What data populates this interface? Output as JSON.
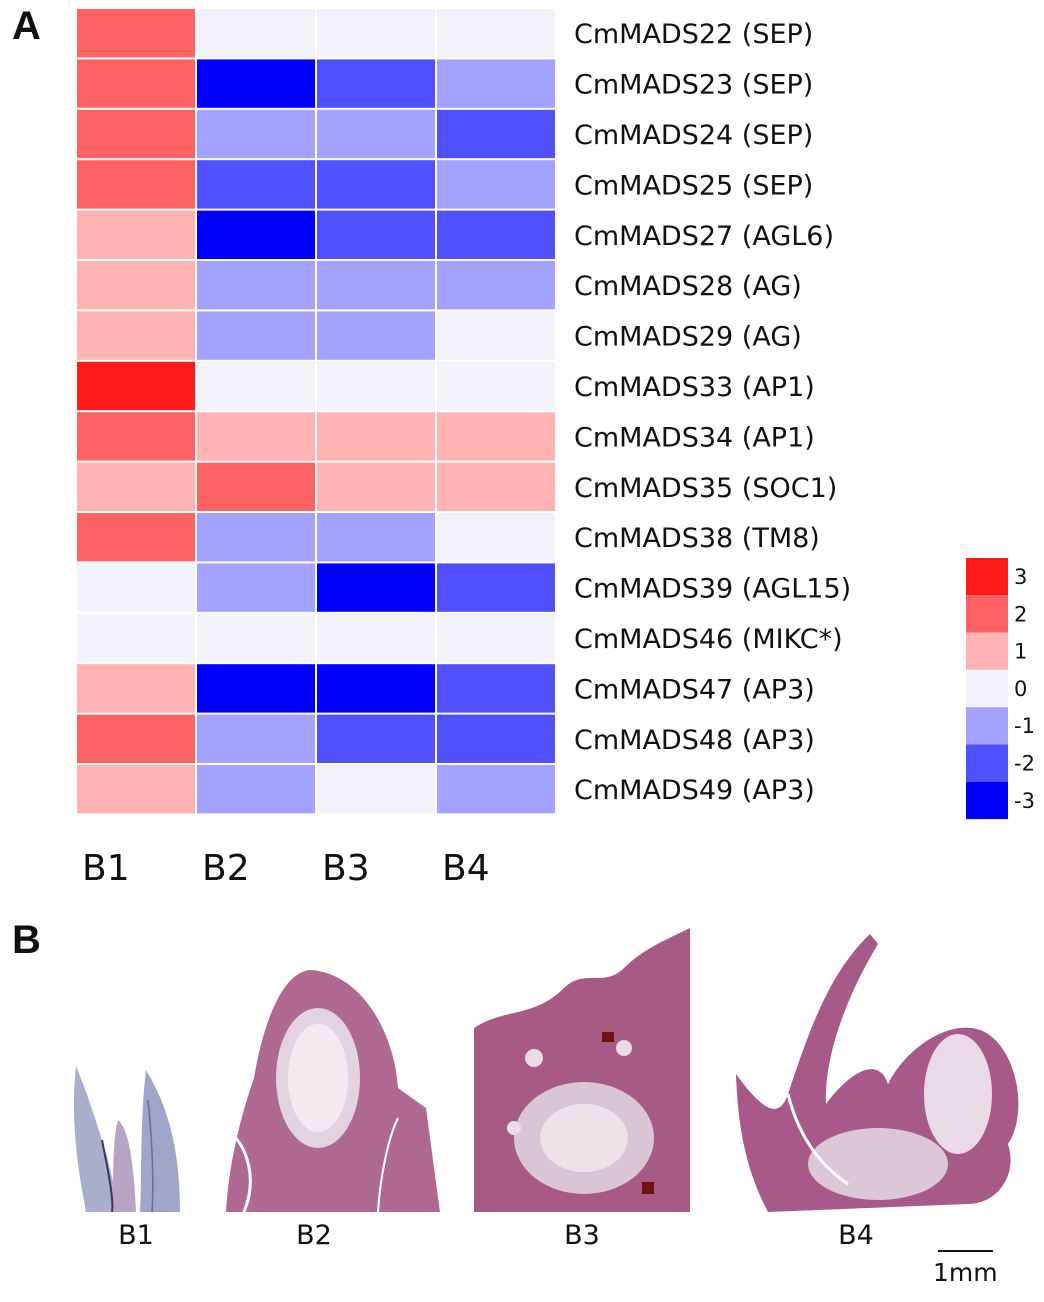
{
  "panel_a_letter": "A",
  "panel_b_letter": "B",
  "chart_data": {
    "type": "heatmap",
    "columns": [
      "B1",
      "B2",
      "B3",
      "B4"
    ],
    "rows": [
      "CmMADS22 (SEP)",
      "CmMADS23 (SEP)",
      "CmMADS24 (SEP)",
      "CmMADS25 (SEP)",
      "CmMADS27 (AGL6)",
      "CmMADS28 (AG)",
      "CmMADS29 (AG)",
      "CmMADS33 (AP1)",
      "CmMADS34 (AP1)",
      "CmMADS35 (SOC1)",
      "CmMADS38 (TM8)",
      "CmMADS39 (AGL15)",
      "CmMADS46 (MIKC*)",
      "CmMADS47 (AP3)",
      "CmMADS48 (AP3)",
      "CmMADS49 (AP3)"
    ],
    "values": [
      [
        2,
        0,
        0,
        0
      ],
      [
        2,
        -3,
        -2,
        -1
      ],
      [
        2,
        -1,
        -1,
        -2
      ],
      [
        2,
        -2,
        -2,
        -1
      ],
      [
        1,
        -3,
        -2,
        -2
      ],
      [
        1,
        -1,
        -1,
        -1
      ],
      [
        1,
        -1,
        -1,
        0
      ],
      [
        3,
        0,
        0,
        0
      ],
      [
        2,
        1,
        1,
        1
      ],
      [
        1,
        2,
        1,
        1
      ],
      [
        2,
        -1,
        -1,
        0
      ],
      [
        0,
        -1,
        -3,
        -2
      ],
      [
        0,
        0,
        0,
        0
      ],
      [
        1,
        -3,
        -3,
        -2
      ],
      [
        2,
        -1,
        -2,
        -2
      ],
      [
        1,
        -1,
        0,
        -1
      ]
    ],
    "legend_levels": [
      3,
      2,
      1,
      0,
      -1,
      -2,
      -3
    ],
    "legend_labels": [
      "3",
      "2",
      "1",
      "0",
      "-1",
      "-2",
      "-3"
    ],
    "colors": {
      "3": "#ff1a1a",
      "2": "#ff6262",
      "1": "#ffb3b3",
      "0": "#f2f2fa",
      "-1": "#a3a3ff",
      "-2": "#5050ff",
      "-3": "#0000ff"
    }
  },
  "micrographs": [
    {
      "label": "B1"
    },
    {
      "label": "B2"
    },
    {
      "label": "B3"
    },
    {
      "label": "B4"
    }
  ],
  "scale_bar_label": "1mm"
}
